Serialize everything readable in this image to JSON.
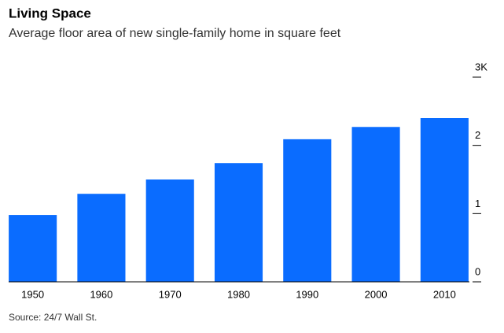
{
  "chart_data": {
    "type": "bar",
    "title": "Living Space",
    "subtitle": "Average floor area of new single-family home in square feet",
    "categories": [
      "1950",
      "1960",
      "1970",
      "1980",
      "1990",
      "2000",
      "2010"
    ],
    "values": [
      0.98,
      1.29,
      1.5,
      1.74,
      2.09,
      2.27,
      2.4
    ],
    "color": "#0a6cff",
    "ylim": [
      0,
      3
    ],
    "yticks": [
      0,
      1,
      2,
      {
        "value": 3,
        "label": "3K"
      }
    ],
    "source": "Source: 24/7 Wall St."
  }
}
